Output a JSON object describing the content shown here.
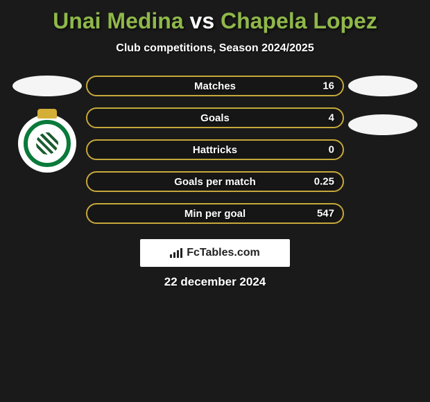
{
  "title": {
    "player1": "Unai Medina",
    "vs": "vs",
    "player2": "Chapela Lopez",
    "color_players": "#8fb84a",
    "color_vs": "#ffffff",
    "fontsize": 32
  },
  "subtitle": "Club competitions, Season 2024/2025",
  "background_color": "#1a1a1a",
  "stats": [
    {
      "label": "Matches",
      "left_value": "",
      "right_value": "16",
      "border_color": "#c6a93a",
      "left_fill_pct": 0,
      "right_fill_pct": 0,
      "fill_color": "#c6a93a"
    },
    {
      "label": "Goals",
      "left_value": "",
      "right_value": "4",
      "border_color": "#c6a93a",
      "left_fill_pct": 0,
      "right_fill_pct": 0,
      "fill_color": "#c6a93a"
    },
    {
      "label": "Hattricks",
      "left_value": "",
      "right_value": "0",
      "border_color": "#c6a93a",
      "left_fill_pct": 0,
      "right_fill_pct": 0,
      "fill_color": "#c6a93a"
    },
    {
      "label": "Goals per match",
      "left_value": "",
      "right_value": "0.25",
      "border_color": "#c6a93a",
      "left_fill_pct": 0,
      "right_fill_pct": 0,
      "fill_color": "#c6a93a"
    },
    {
      "label": "Min per goal",
      "left_value": "",
      "right_value": "547",
      "border_color": "#c6a93a",
      "left_fill_pct": 0,
      "right_fill_pct": 0,
      "fill_color": "#c6a93a"
    }
  ],
  "left_badges": {
    "oval_color": "#f5f5f5",
    "has_crest": true
  },
  "right_badges": {
    "oval_color": "#f5f5f5",
    "oval_count": 2
  },
  "brand_logo": "FcTables.com",
  "date": "22 december 2024"
}
